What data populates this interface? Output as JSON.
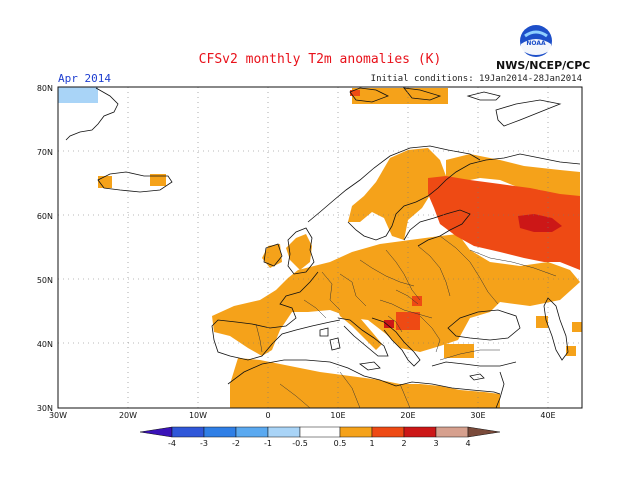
{
  "header": {
    "title": "CFSv2 monthly T2m anomalies (K)",
    "period": "Apr 2014",
    "initial_conditions": "Initial conditions: 19Jan2014-28Jan2014",
    "agency": "NWS/NCEP/CPC",
    "logo_text": "NOAA"
  },
  "map": {
    "lon_ticks": [
      "30W",
      "20W",
      "10W",
      "0",
      "10E",
      "20E",
      "30E",
      "40E"
    ],
    "lat_ticks": [
      "30N",
      "40N",
      "50N",
      "60N",
      "70N",
      "80N"
    ],
    "extent": {
      "lon": [
        -30,
        45
      ],
      "lat": [
        30,
        80
      ]
    }
  },
  "legend": {
    "labels": [
      "-4",
      "-3",
      "-2",
      "-1",
      "-0.5",
      "0.5",
      "1",
      "2",
      "3",
      "4"
    ],
    "colors": [
      "#5a2ee0",
      "#2f57d9",
      "#2f7fe6",
      "#5aa9f0",
      "#a9d4f7",
      "#ffffff",
      "#f5a21a",
      "#ee4a14",
      "#cc1717",
      "#d6a08e"
    ],
    "end_left_color": "#3a12b8",
    "end_right_color": "#7a4a3a"
  },
  "anomaly_colors": {
    "warm_light": "#f5a21a",
    "warm_mid": "#ee4a14",
    "warm_strong": "#cc1717",
    "cool_light": "#a9d4f7"
  },
  "chart_data": {
    "type": "heatmap",
    "title": "CFSv2 monthly T2m anomalies (K)",
    "variable": "T2m anomaly",
    "units": "K",
    "regions": [
      {
        "region": "Eastern Europe / western Russia",
        "anomaly_range": "1 to 2 K (core 2 to 3 K)"
      },
      {
        "region": "Central and eastern Europe, Balkans",
        "anomaly_range": "0.5 to 1 K, locally 1 to 2 K"
      },
      {
        "region": "Western Europe and Scandinavia",
        "anomaly_range": "0.5 to 1 K"
      },
      {
        "region": "North Africa",
        "anomaly_range": "0.5 to 1 K"
      },
      {
        "region": "NE Greenland",
        "anomaly_range": "-1 to -0.5 K"
      }
    ]
  }
}
